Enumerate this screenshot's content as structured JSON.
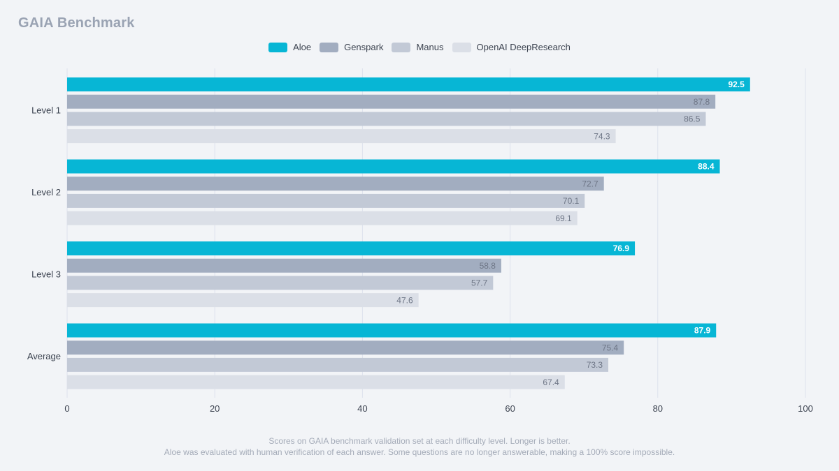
{
  "chart_data": {
    "type": "bar",
    "orientation": "horizontal",
    "title": "GAIA Benchmark",
    "categories": [
      "Level 1",
      "Level 2",
      "Level 3",
      "Average"
    ],
    "series": [
      {
        "name": "Aloe",
        "color": "#07b6d5",
        "values": [
          92.5,
          88.4,
          76.9,
          87.9
        ]
      },
      {
        "name": "Genspark",
        "color": "#a2adc0",
        "values": [
          87.8,
          72.7,
          58.8,
          75.4
        ]
      },
      {
        "name": "Manus",
        "color": "#c2c9d6",
        "values": [
          86.5,
          70.1,
          57.7,
          73.3
        ]
      },
      {
        "name": "OpenAI DeepResearch",
        "color": "#dbdfe7",
        "values": [
          74.3,
          69.1,
          47.6,
          67.4
        ]
      }
    ],
    "xlim": [
      0,
      100
    ],
    "xticks": [
      0,
      20,
      40,
      60,
      80,
      100
    ],
    "grid": true,
    "legend_position": "top-center"
  },
  "footnotes": [
    "Scores on GAIA benchmark validation set at each difficulty level. Longer is better.",
    "Aloe was evaluated with human verification of each answer. Some questions are no longer answerable, making a 100% score impossible."
  ]
}
